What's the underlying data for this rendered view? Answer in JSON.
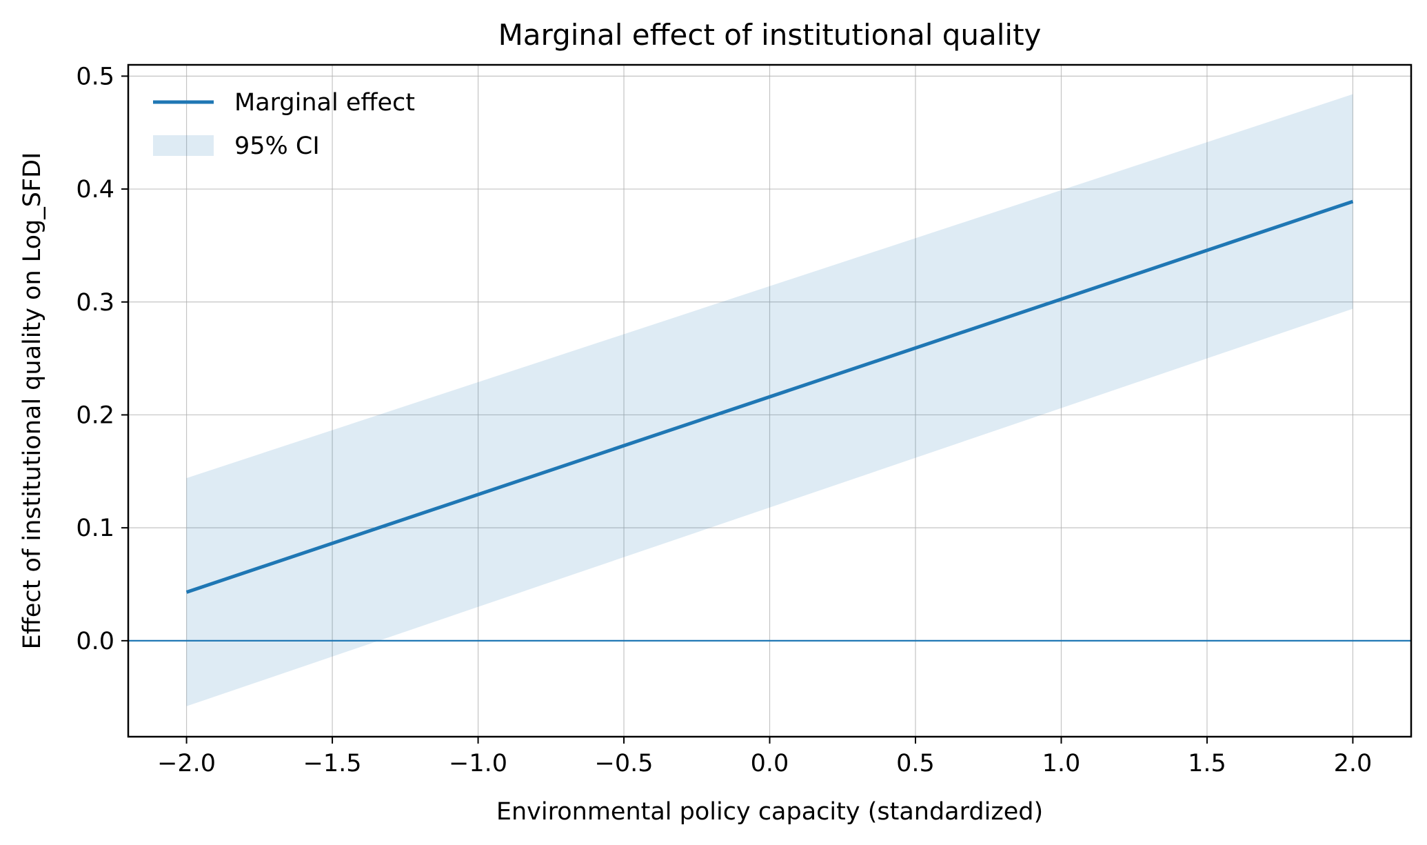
{
  "chart_data": {
    "type": "line",
    "title": "Marginal effect of institutional quality",
    "xlabel": "Environmental policy capacity (standardized)",
    "ylabel": "Effect of institutional quality on Log_SFDI",
    "xlim": [
      -2.2,
      2.2
    ],
    "ylim": [
      -0.085,
      0.51
    ],
    "xticks": [
      -2.0,
      -1.5,
      -1.0,
      -0.5,
      0.0,
      0.5,
      1.0,
      1.5,
      2.0
    ],
    "xtick_labels": [
      "−2.0",
      "−1.5",
      "−1.0",
      "−0.5",
      "0.0",
      "0.5",
      "1.0",
      "1.5",
      "2.0"
    ],
    "yticks": [
      0.0,
      0.1,
      0.2,
      0.3,
      0.4,
      0.5
    ],
    "ytick_labels": [
      "0.0",
      "0.1",
      "0.2",
      "0.3",
      "0.4",
      "0.5"
    ],
    "grid": true,
    "legend_position": "top-left",
    "reference_line": {
      "y": 0.0
    },
    "series": [
      {
        "name": "Marginal effect",
        "kind": "line",
        "color": "#1f77b4",
        "x": [
          -2.0,
          2.0
        ],
        "y": [
          0.043,
          0.389
        ]
      },
      {
        "name": "95% CI",
        "kind": "band",
        "color": "#1f77b4",
        "x": [
          -2.0,
          2.0
        ],
        "lower": [
          -0.058,
          0.294
        ],
        "upper": [
          0.144,
          0.484
        ]
      }
    ]
  }
}
